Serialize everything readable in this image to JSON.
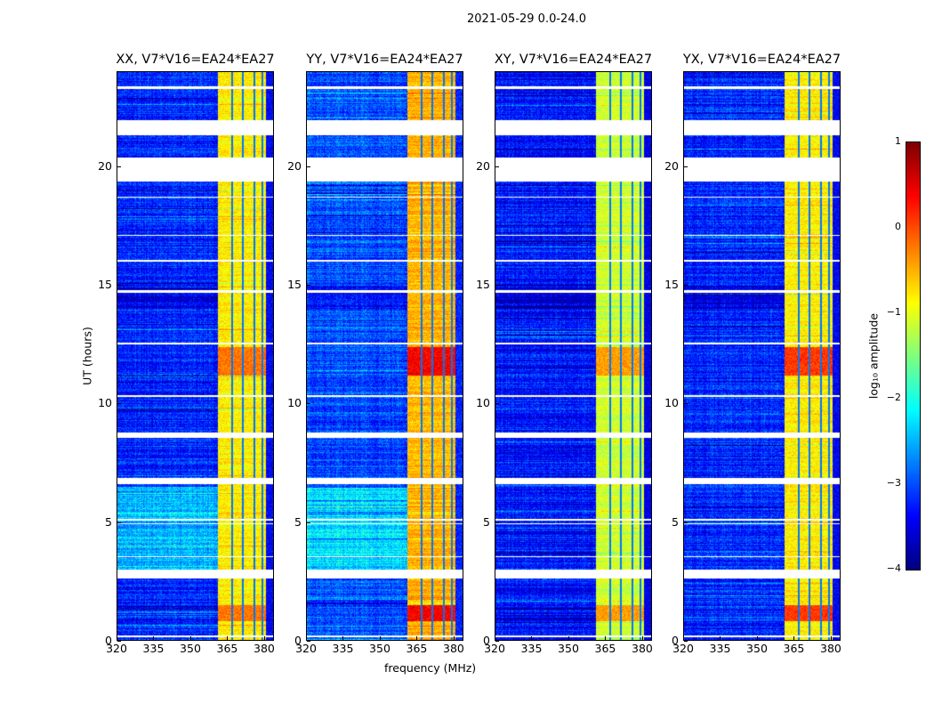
{
  "figure_title": "2021-05-29 0.0-24.0",
  "chart_data": {
    "type": "heatmap",
    "xlabel": "frequency (MHz)",
    "ylabel": "UT (hours)",
    "xlim": [
      320,
      384
    ],
    "ylim": [
      0,
      24
    ],
    "xticks": [
      320,
      335,
      350,
      365,
      380
    ],
    "yticks": [
      0,
      5,
      10,
      15,
      20
    ],
    "panels": [
      {
        "title": "XX, V7*V16=EA24*EA27",
        "band_level": -0.8,
        "strong_level": -0.2,
        "bg_level": -3.2
      },
      {
        "title": "YY, V7*V16=EA24*EA27",
        "band_level": -0.5,
        "strong_level": 0.4,
        "bg_level": -3.0
      },
      {
        "title": "XY, V7*V16=EA24*EA27",
        "band_level": -1.1,
        "strong_level": -0.4,
        "bg_level": -3.3
      },
      {
        "title": "YX, V7*V16=EA24*EA27",
        "band_level": -0.8,
        "strong_level": 0.1,
        "bg_level": -3.2
      }
    ],
    "rfi_band_mhz": [
      361,
      381
    ],
    "flagged_hours": [
      [
        21.35,
        22.0
      ],
      [
        19.4,
        20.4
      ],
      [
        8.55,
        8.8
      ],
      [
        6.6,
        6.85
      ],
      [
        2.6,
        3.0
      ],
      [
        5.05,
        5.15
      ],
      [
        16.0,
        16.1
      ],
      [
        14.7,
        14.8
      ],
      [
        23.3,
        23.4
      ],
      [
        12.5,
        12.6
      ],
      [
        0.15,
        0.2
      ],
      [
        3.5,
        3.55
      ],
      [
        4.9,
        4.95
      ],
      [
        10.3,
        10.35
      ],
      [
        18.7,
        18.75
      ],
      [
        17.1,
        17.15
      ]
    ],
    "colorbar": {
      "label": "log₁₀ amplitude",
      "range": [
        -4,
        1
      ],
      "ticks": [
        "1",
        "0",
        "−1",
        "−2",
        "−3",
        "−4"
      ],
      "colormap": "jet"
    }
  }
}
